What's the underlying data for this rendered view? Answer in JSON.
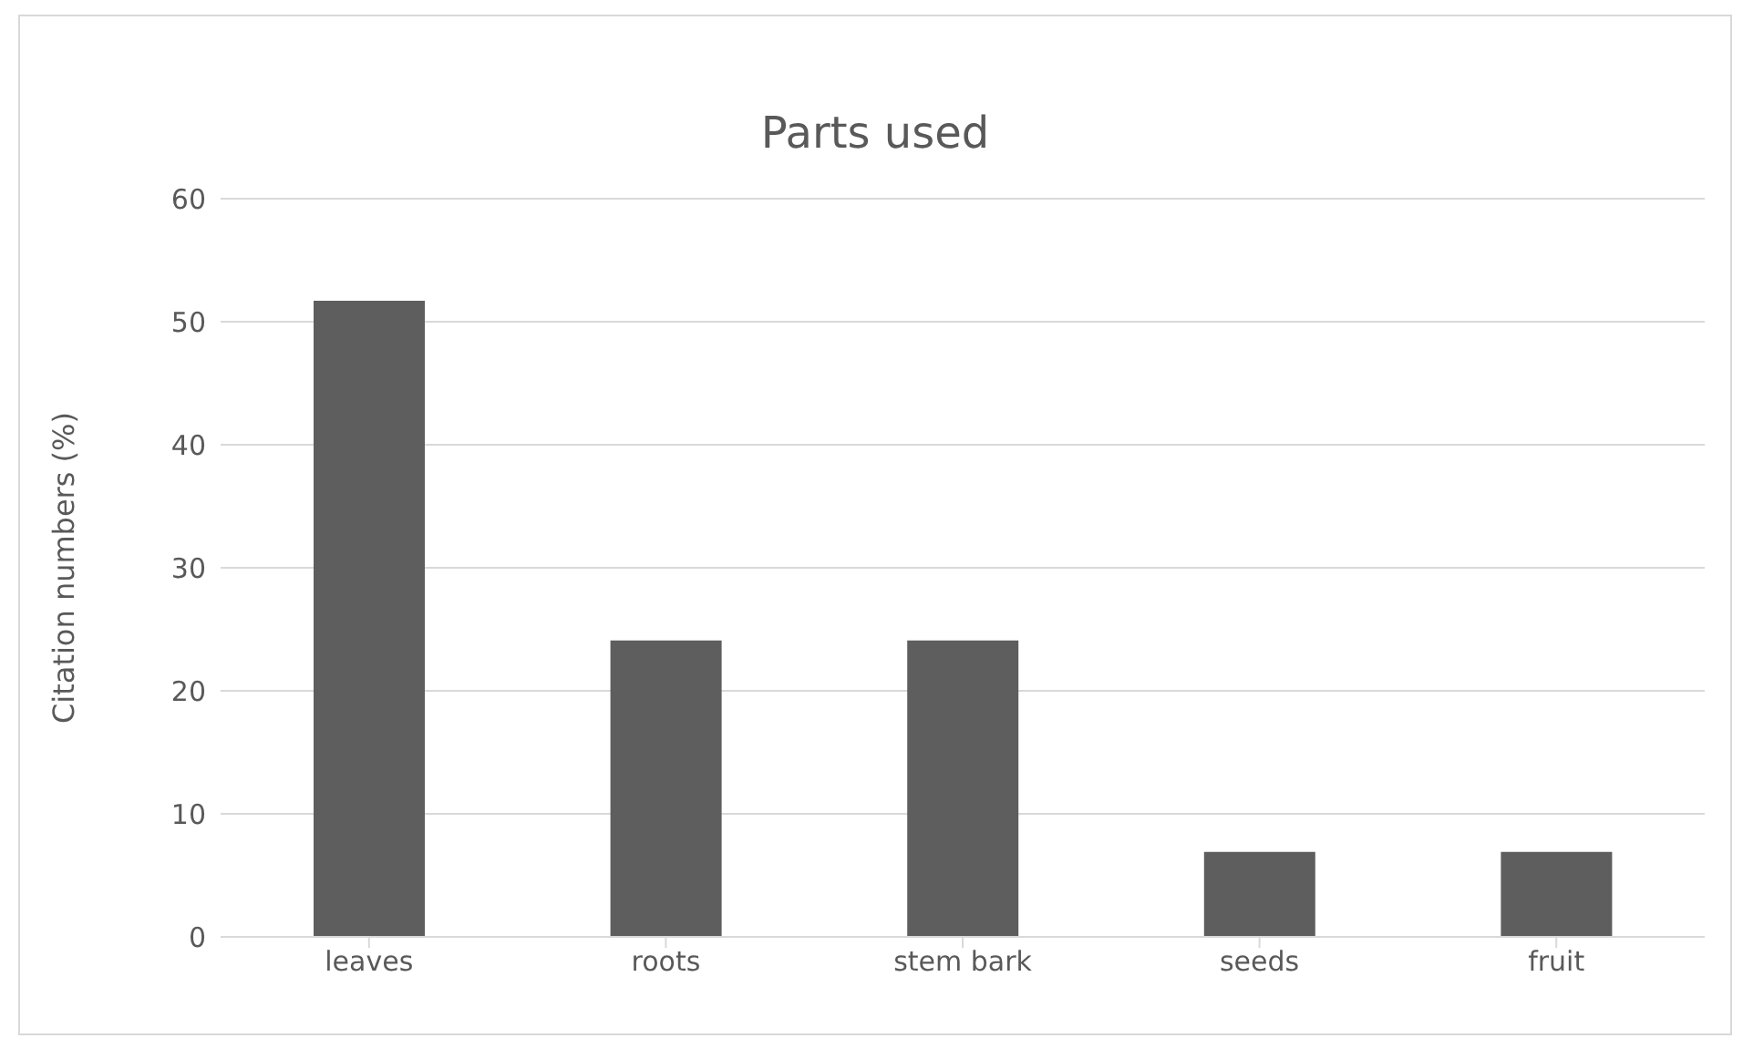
{
  "chart_data": {
    "type": "bar",
    "title": "Parts used",
    "ylabel": "Citation numbers (%)",
    "categories": [
      "leaves",
      "roots",
      "stem bark",
      "seeds",
      "fruit"
    ],
    "values": [
      51.7,
      24.1,
      24.1,
      6.9,
      6.9
    ],
    "color": "#5e5e5e",
    "ylim": [
      0,
      60
    ],
    "yticks": [
      0,
      10,
      20,
      30,
      40,
      50,
      60
    ],
    "grid": "y",
    "legend": false
  }
}
